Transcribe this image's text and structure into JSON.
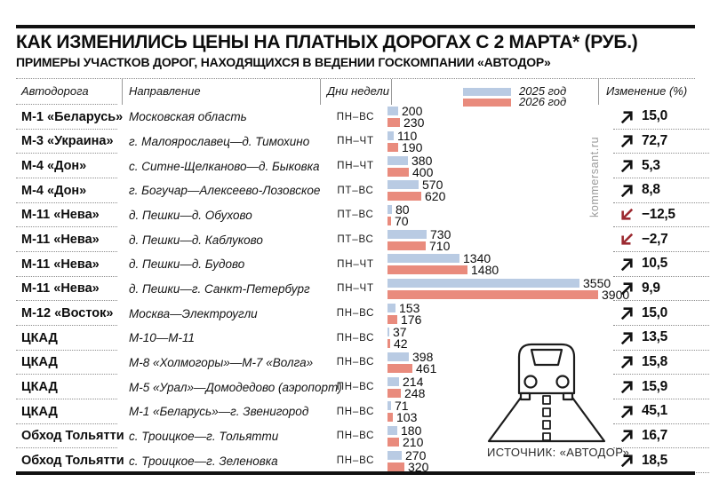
{
  "header": {
    "title": "КАК ИЗМЕНИЛИСЬ ЦЕНЫ НА ПЛАТНЫХ ДОРОГАХ С 2 МАРТА* (РУБ.)",
    "subtitle": "ПРИМЕРЫ УЧАСТКОВ ДОРОГ, НАХОДЯЩИХСЯ В ВЕДЕНИИ ГОСКОМПАНИИ «АВТОДОР»"
  },
  "columns": {
    "road": "Автодорога",
    "direction": "Направление",
    "days": "Дни недели",
    "change": "Изменение (%)"
  },
  "legend": {
    "items": [
      {
        "label": "2025 год",
        "color": "#b9cbe3"
      },
      {
        "label": "2026 год",
        "color": "#e98b7d"
      }
    ]
  },
  "colors": {
    "bar2025": "#b9cbe3",
    "bar2026": "#e98b7d",
    "arrow_up": "#121212",
    "arrow_down": "#9c2a31"
  },
  "icons": {
    "trend_up": "trend-up-arrow-icon",
    "trend_down": "trend-down-arrow-icon",
    "illustration": "car-on-road-icon"
  },
  "watermark": "kommersant.ru",
  "source": "ИСТОЧНИК: «АВТОДОР».",
  "chart_data": {
    "type": "bar",
    "orientation": "horizontal",
    "title": "КАК ИЗМЕНИЛИСЬ ЦЕНЫ НА ПЛАТНЫХ ДОРОГАХ С 2 МАРТА* (РУБ.)",
    "series_names": [
      "2025 год",
      "2026 год"
    ],
    "unit": "руб.",
    "scale_max": 3900,
    "legend_position": "top",
    "grid": false,
    "rows": [
      {
        "road": "М-1 «Беларусь»",
        "direction": "Московская область",
        "days": "ПН–ВС",
        "v2025": 200,
        "v2026": 230,
        "change": "15,0",
        "trend": "up"
      },
      {
        "road": "М-3 «Украина»",
        "direction": "г. Малоярославец—д. Тимохино",
        "days": "ПН–ЧТ",
        "v2025": 110,
        "v2026": 190,
        "change": "72,7",
        "trend": "up"
      },
      {
        "road": "М-4 «Дон»",
        "direction": "с. Ситне-Щелканово—д. Быковка",
        "days": "ПН–ЧТ",
        "v2025": 380,
        "v2026": 400,
        "change": "5,3",
        "trend": "up"
      },
      {
        "road": "М-4 «Дон»",
        "direction": "г. Богучар—Алексеево-Лозовское",
        "days": "ПТ–ВС",
        "v2025": 570,
        "v2026": 620,
        "change": "8,8",
        "trend": "up"
      },
      {
        "road": "М-11 «Нева»",
        "direction": "д. Пешки—д. Обухово",
        "days": "ПТ–ВС",
        "v2025": 80,
        "v2026": 70,
        "change": "−12,5",
        "trend": "down"
      },
      {
        "road": "М-11 «Нева»",
        "direction": "д. Пешки—д. Каблуково",
        "days": "ПТ–ВС",
        "v2025": 730,
        "v2026": 710,
        "change": "−2,7",
        "trend": "down"
      },
      {
        "road": "М-11 «Нева»",
        "direction": "д. Пешки—д. Будово",
        "days": "ПН–ЧТ",
        "v2025": 1340,
        "v2026": 1480,
        "change": "10,5",
        "trend": "up"
      },
      {
        "road": "М-11 «Нева»",
        "direction": "д. Пешки—г. Санкт-Петербург",
        "days": "ПН–ЧТ",
        "v2025": 3550,
        "v2026": 3900,
        "change": "9,9",
        "trend": "up"
      },
      {
        "road": "М-12 «Восток»",
        "direction": "Москва—Электроугли",
        "days": "ПН–ВС",
        "v2025": 153,
        "v2026": 176,
        "change": "15,0",
        "trend": "up"
      },
      {
        "road": "ЦКАД",
        "direction": "М-10—М-11",
        "days": "ПН–ВС",
        "v2025": 37,
        "v2026": 42,
        "change": "13,5",
        "trend": "up"
      },
      {
        "road": "ЦКАД",
        "direction": "М-8 «Холмогоры»—М-7 «Волга»",
        "days": "ПН–ВС",
        "v2025": 398,
        "v2026": 461,
        "change": "15,8",
        "trend": "up"
      },
      {
        "road": "ЦКАД",
        "direction": "М-5 «Урал»—Домодедово (аэропорт)",
        "days": "ПН–ВС",
        "v2025": 214,
        "v2026": 248,
        "change": "15,9",
        "trend": "up"
      },
      {
        "road": "ЦКАД",
        "direction": "М-1 «Беларусь»—г. Звенигород",
        "days": "ПН–ВС",
        "v2025": 71,
        "v2026": 103,
        "change": "45,1",
        "trend": "up"
      },
      {
        "road": "Обход Тольятти",
        "direction": "с. Троицкое—г. Тольятти",
        "days": "ПН–ВС",
        "v2025": 180,
        "v2026": 210,
        "change": "16,7",
        "trend": "up"
      },
      {
        "road": "Обход Тольятти",
        "direction": "с. Троицкое—г. Зеленовка",
        "days": "ПН–ВС",
        "v2025": 270,
        "v2026": 320,
        "change": "18,5",
        "trend": "up"
      }
    ]
  }
}
